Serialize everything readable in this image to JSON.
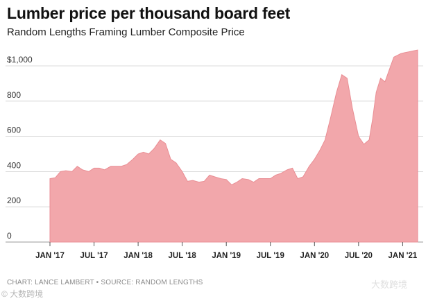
{
  "header": {
    "title": "Lumber price per thousand board feet",
    "subtitle": "Random Lengths Framing Lumber Composite Price"
  },
  "footer": {
    "credit": "CHART: LANCE LAMBERT • SOURCE: RANDOM LENGTHS",
    "watermark": "© 大数跨境",
    "watermark_right": "大数跨境"
  },
  "colors": {
    "area_fill": "#f2a7ab",
    "area_stroke": "#e98e94",
    "grid": "#cfcfcf",
    "text": "#222222"
  },
  "chart_data": {
    "type": "area",
    "title": "Lumber price per thousand board feet",
    "subtitle": "Random Lengths Framing Lumber Composite Price",
    "xlabel": "",
    "ylabel": "",
    "ylim": [
      0,
      1000
    ],
    "yticks": [
      0,
      200,
      400,
      600,
      800,
      1000
    ],
    "ytick_labels": [
      "0",
      "200",
      "400",
      "600",
      "800",
      "$1,000"
    ],
    "xlim": [
      2017.0,
      2021.17
    ],
    "xticks": [
      2017.0,
      2017.5,
      2018.0,
      2018.5,
      2019.0,
      2019.5,
      2020.0,
      2020.5,
      2021.0
    ],
    "xtick_labels": [
      "JAN '17",
      "JUL '17",
      "JAN '18",
      "JUL '18",
      "JAN '19",
      "JUL '19",
      "JAN '20",
      "JUL '20",
      "JAN '21"
    ],
    "grid": true,
    "series": [
      {
        "name": "Framing Lumber Composite Price",
        "x": [
          2017.0,
          2017.06,
          2017.12,
          2017.18,
          2017.25,
          2017.31,
          2017.37,
          2017.44,
          2017.5,
          2017.56,
          2017.62,
          2017.69,
          2017.75,
          2017.81,
          2017.87,
          2017.94,
          2018.0,
          2018.06,
          2018.12,
          2018.18,
          2018.25,
          2018.31,
          2018.37,
          2018.43,
          2018.5,
          2018.56,
          2018.62,
          2018.69,
          2018.75,
          2018.81,
          2018.87,
          2018.94,
          2019.0,
          2019.06,
          2019.12,
          2019.18,
          2019.25,
          2019.31,
          2019.37,
          2019.43,
          2019.5,
          2019.56,
          2019.62,
          2019.69,
          2019.75,
          2019.81,
          2019.87,
          2019.94,
          2020.0,
          2020.06,
          2020.12,
          2020.18,
          2020.25,
          2020.31,
          2020.37,
          2020.43,
          2020.5,
          2020.56,
          2020.62,
          2020.66,
          2020.7,
          2020.75,
          2020.8,
          2020.85,
          2020.9,
          2020.94,
          2020.98,
          2021.02,
          2021.07,
          2021.12,
          2021.17
        ],
        "values": [
          360,
          365,
          400,
          405,
          400,
          430,
          410,
          400,
          420,
          420,
          410,
          430,
          430,
          430,
          440,
          470,
          500,
          510,
          500,
          530,
          580,
          560,
          470,
          450,
          400,
          345,
          350,
          340,
          345,
          380,
          370,
          360,
          355,
          325,
          340,
          360,
          355,
          340,
          360,
          360,
          360,
          380,
          390,
          410,
          420,
          360,
          370,
          430,
          470,
          520,
          580,
          700,
          850,
          950,
          930,
          760,
          600,
          555,
          580,
          700,
          850,
          930,
          910,
          980,
          1050,
          1060,
          1070,
          1075,
          1080,
          1085,
          1090
        ]
      }
    ]
  }
}
